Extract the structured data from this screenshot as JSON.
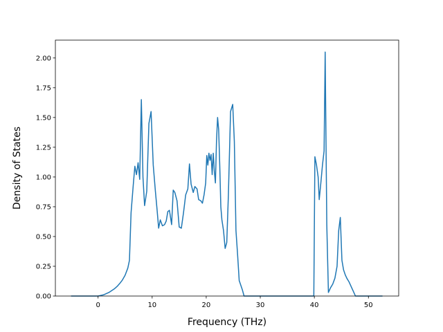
{
  "chart_data": {
    "type": "line",
    "title": "",
    "xlabel": "Frequency (THz)",
    "ylabel": "Density of States",
    "xlim": [
      -7.9,
      55.6
    ],
    "ylim": [
      0,
      2.15
    ],
    "xticks": [
      0,
      10,
      20,
      30,
      40,
      50
    ],
    "xtick_labels": [
      "0",
      "10",
      "20",
      "30",
      "40",
      "50"
    ],
    "yticks": [
      0,
      0.25,
      0.5,
      0.75,
      1.0,
      1.25,
      1.5,
      1.75,
      2.0
    ],
    "ytick_labels": [
      "0.00",
      "0.25",
      "0.50",
      "0.75",
      "1.00",
      "1.25",
      "1.50",
      "1.75",
      "2.00"
    ],
    "grid": false,
    "colors": {
      "line": "#1f77b4"
    },
    "series": [
      {
        "x": [
          -5.0,
          0,
          0.5,
          1.0,
          1.5,
          2.0,
          2.5,
          3.0,
          3.5,
          4.0,
          4.5,
          5.0,
          5.5,
          5.8,
          6.1,
          6.5,
          6.8,
          7.1,
          7.4,
          7.7,
          8.0,
          8.3,
          8.6,
          9.0,
          9.4,
          9.8,
          10.2,
          10.6,
          10.9,
          11.2,
          11.5,
          11.9,
          12.3,
          12.6,
          12.9,
          13.2,
          13.6,
          13.9,
          14.2,
          14.6,
          15.0,
          15.4,
          15.8,
          16.2,
          16.6,
          16.9,
          17.2,
          17.6,
          17.9,
          18.3,
          18.6,
          19.0,
          19.3,
          19.6,
          19.9,
          20.1,
          20.3,
          20.5,
          20.7,
          20.9,
          21.1,
          21.3,
          21.5,
          21.7,
          21.9,
          22.1,
          22.3,
          22.5,
          22.7,
          22.9,
          23.2,
          23.5,
          23.8,
          24.1,
          24.5,
          24.9,
          25.2,
          25.5,
          25.8,
          26.1,
          26.4,
          26.7,
          27.0,
          27.3,
          27.6,
          28.0,
          28.5,
          39.9,
          40.1,
          40.4,
          40.7,
          40.9,
          41.2,
          41.5,
          41.8,
          42.0,
          42.3,
          42.6,
          43.0,
          43.4,
          43.8,
          44.2,
          44.5,
          44.8,
          45.1,
          45.4,
          45.7,
          46.0,
          46.4,
          46.8,
          47.2,
          47.6,
          48.0,
          48.4,
          52.6
        ],
        "y": [
          0,
          0,
          0.005,
          0.01,
          0.02,
          0.03,
          0.045,
          0.06,
          0.08,
          0.105,
          0.135,
          0.175,
          0.235,
          0.3,
          0.7,
          0.93,
          1.09,
          1.02,
          1.12,
          0.98,
          1.65,
          1.0,
          0.76,
          0.88,
          1.45,
          1.55,
          1.1,
          0.88,
          0.73,
          0.57,
          0.64,
          0.59,
          0.6,
          0.63,
          0.71,
          0.72,
          0.6,
          0.89,
          0.87,
          0.8,
          0.58,
          0.57,
          0.7,
          0.85,
          0.9,
          1.11,
          0.94,
          0.87,
          0.92,
          0.9,
          0.81,
          0.8,
          0.78,
          0.85,
          0.95,
          1.18,
          1.1,
          1.2,
          1.14,
          1.19,
          1.02,
          1.2,
          1.05,
          0.95,
          1.3,
          1.5,
          1.4,
          1.1,
          0.75,
          0.64,
          0.55,
          0.4,
          0.45,
          0.85,
          1.55,
          1.61,
          1.3,
          0.55,
          0.35,
          0.13,
          0.09,
          0.05,
          0.0,
          0,
          0,
          0,
          0,
          0,
          1.17,
          1.1,
          1.0,
          0.81,
          0.95,
          1.1,
          1.22,
          2.05,
          0.6,
          0.03,
          0.07,
          0.1,
          0.15,
          0.25,
          0.55,
          0.66,
          0.3,
          0.22,
          0.18,
          0.15,
          0.12,
          0.08,
          0.04,
          0.0,
          0,
          0,
          0
        ]
      }
    ]
  }
}
